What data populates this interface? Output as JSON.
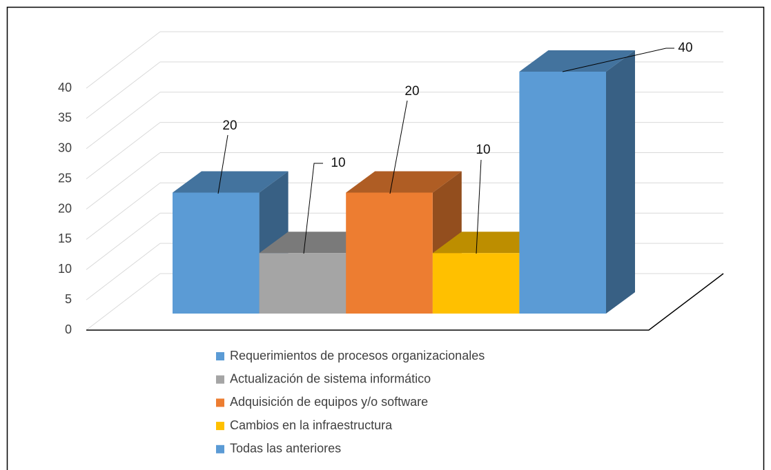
{
  "chart_data": {
    "type": "bar",
    "categories": [
      "Requerimientos de procesos organizacionales",
      "Actualización de sistema informático",
      "Adquisición de equipos y/o software",
      "Cambios en la infraestructura",
      "Todas las anteriores"
    ],
    "values": [
      20,
      10,
      20,
      10,
      40
    ],
    "colors": [
      "#5b9bd5",
      "#a5a5a5",
      "#ed7d31",
      "#ffc000",
      "#5b9bd5"
    ],
    "ylim": [
      0,
      40
    ],
    "yticks": [
      0,
      5,
      10,
      15,
      20,
      25,
      30,
      35,
      40
    ],
    "grid": true,
    "legend": "bottom"
  }
}
